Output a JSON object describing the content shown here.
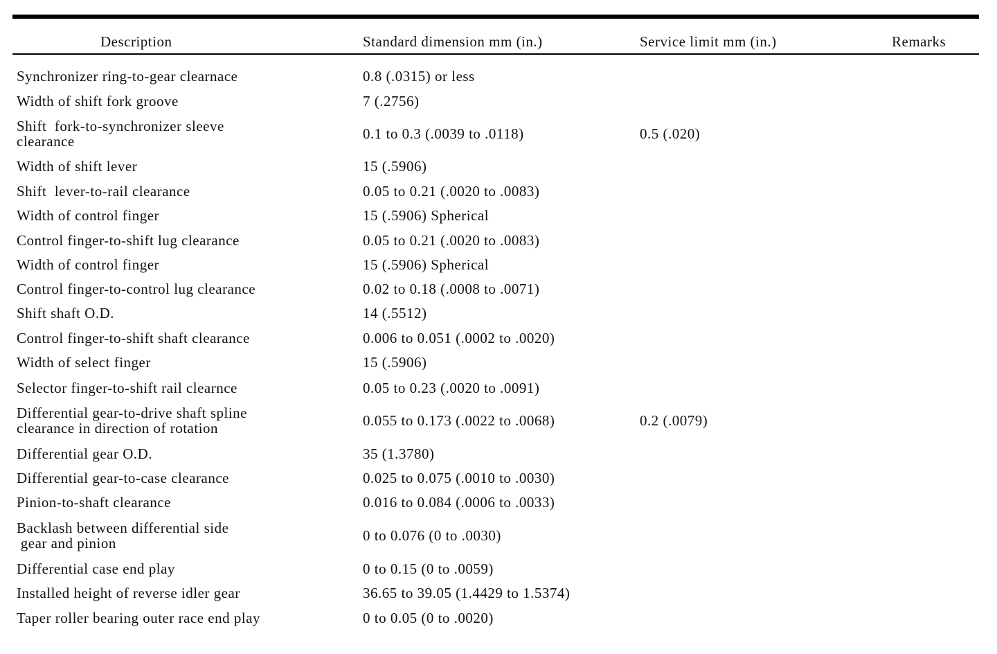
{
  "table": {
    "headers": {
      "description": "Description",
      "standard": "Standard dimension mm (in.)",
      "service": "Service limit mm (in.)",
      "remarks": "Remarks"
    },
    "rows": [
      {
        "description": "Synchronizer ring-to-gear clearnace",
        "standard": "0.8 (.0315) or less",
        "service": "",
        "remarks": ""
      },
      {
        "description": "Width of shift fork groove",
        "standard": "7 (.2756)",
        "service": "",
        "remarks": ""
      },
      {
        "description": "Shift  fork-to-synchronizer sleeve\nclearance",
        "standard": "0.1 to 0.3 (.0039 to .0118)",
        "service": "0.5 (.020)",
        "remarks": ""
      },
      {
        "description": "Width of shift lever",
        "standard": "15 (.5906)",
        "service": "",
        "remarks": ""
      },
      {
        "description": "Shift  lever-to-rail clearance",
        "standard": "0.05 to 0.21 (.0020 to .0083)",
        "service": "",
        "remarks": ""
      },
      {
        "description": "Width of control finger",
        "standard": "15 (.5906) Spherical",
        "service": "",
        "remarks": ""
      },
      {
        "description": "Control finger-to-shift lug clearance",
        "standard": "0.05 to 0.21 (.0020 to .0083)",
        "service": "",
        "remarks": ""
      },
      {
        "description": "Width of control finger",
        "standard": "15 (.5906) Spherical",
        "service": "",
        "remarks": ""
      },
      {
        "description": "Control finger-to-control lug clearance",
        "standard": "0.02 to 0.18 (.0008 to .0071)",
        "service": "",
        "remarks": ""
      },
      {
        "description": "Shift shaft O.D.",
        "standard": "14 (.5512)",
        "service": "",
        "remarks": ""
      },
      {
        "description": "Control finger-to-shift shaft clearance",
        "standard": "0.006 to 0.051 (.0002 to .0020)",
        "service": "",
        "remarks": ""
      },
      {
        "description": "Width of select finger",
        "standard": "15 (.5906)",
        "service": "",
        "remarks": ""
      },
      {
        "description": "Selector finger-to-shift rail clearnce",
        "standard": "0.05 to 0.23 (.0020 to .0091)",
        "service": "",
        "remarks": ""
      },
      {
        "description": "Differential gear-to-drive shaft spline\nclearance in direction of rotation",
        "standard": "0.055 to 0.173 (.0022 to .0068)",
        "service": "0.2 (.0079)",
        "remarks": ""
      },
      {
        "description": "Differential gear O.D.",
        "standard": "35 (1.3780)",
        "service": "",
        "remarks": ""
      },
      {
        "description": "Differential gear-to-case clearance",
        "standard": "0.025 to 0.075 (.0010 to .0030)",
        "service": "",
        "remarks": ""
      },
      {
        "description": "Pinion-to-shaft clearance",
        "standard": "0.016 to 0.084 (.0006 to .0033)",
        "service": "",
        "remarks": ""
      },
      {
        "description": "Backlash between differential side\n gear and pinion",
        "standard": "0 to 0.076 (0 to .0030)",
        "service": "",
        "remarks": ""
      },
      {
        "description": "Differential case end play",
        "standard": "0 to 0.15 (0 to .0059)",
        "service": "",
        "remarks": ""
      },
      {
        "description": "Installed height of reverse idler gear",
        "standard": "36.65 to 39.05 (1.4429 to 1.5374)",
        "service": "",
        "remarks": ""
      },
      {
        "description": "Taper roller bearing outer race end play",
        "standard": "0 to 0.05 (0 to .0020)",
        "service": "",
        "remarks": ""
      }
    ]
  }
}
